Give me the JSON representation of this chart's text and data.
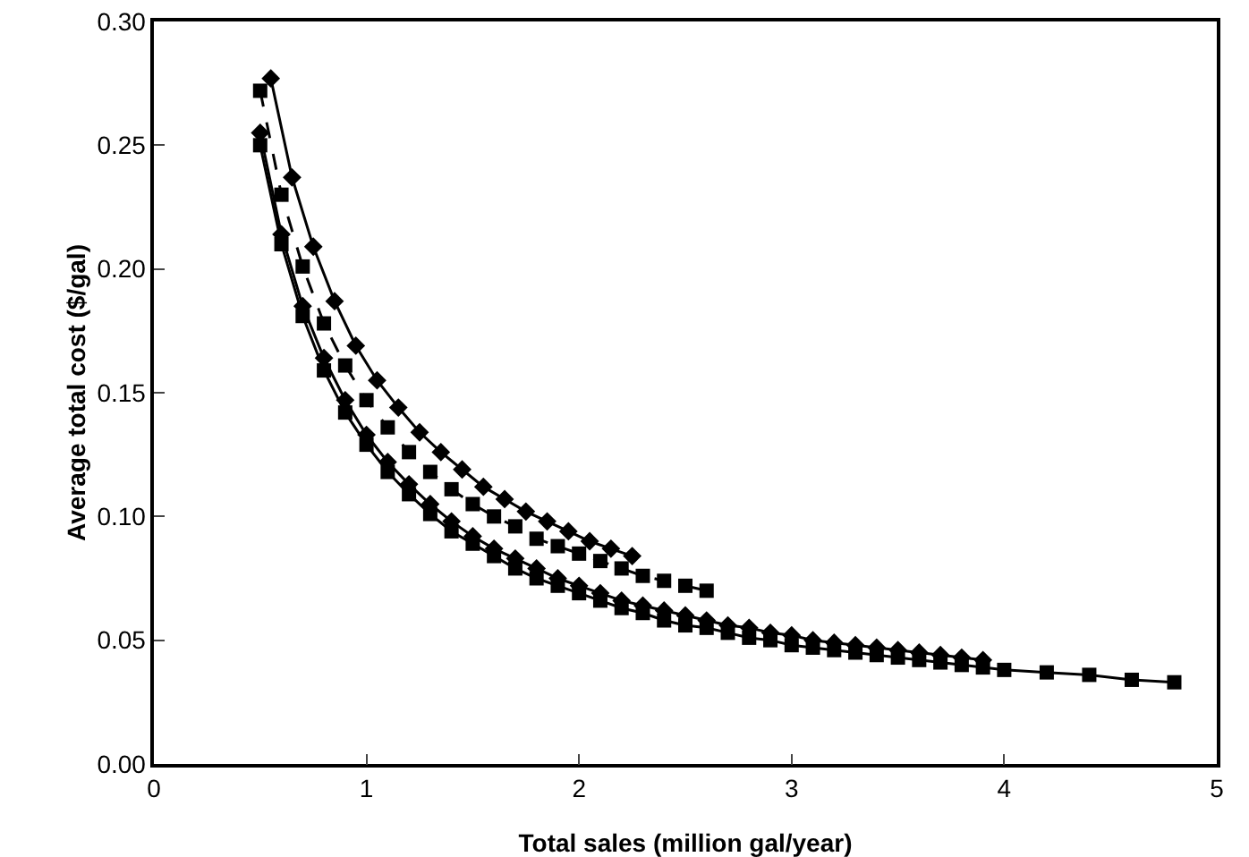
{
  "chart_data": {
    "type": "line",
    "xlabel": "Total sales (million gal/year)",
    "ylabel": "Average total cost ($/gal)",
    "xlim": [
      0,
      5
    ],
    "xticks": [
      0,
      1,
      2,
      3,
      4,
      5
    ],
    "ylim": [
      0,
      0.3
    ],
    "yticks": [
      {
        "value": 0,
        "label": "0.00"
      },
      {
        "value": 0.05,
        "label": "0.05"
      },
      {
        "value": 0.1,
        "label": "0.10"
      },
      {
        "value": 0.15,
        "label": "0.15"
      },
      {
        "value": 0.2,
        "label": "0.20"
      },
      {
        "value": 0.25,
        "label": "0.25"
      },
      {
        "value": 0.3,
        "label": "0.30"
      }
    ],
    "grid": false,
    "series": [
      {
        "color": "#000000",
        "marker": "diamond",
        "line_style": "solid",
        "x": [
          0.55,
          0.65,
          0.75,
          0.85,
          0.95,
          1.05,
          1.15,
          1.25,
          1.35,
          1.45,
          1.55,
          1.65,
          1.75,
          1.85,
          1.95,
          2.05,
          2.15,
          2.25
        ],
        "values": [
          0.277,
          0.237,
          0.209,
          0.187,
          0.169,
          0.155,
          0.144,
          0.134,
          0.126,
          0.119,
          0.112,
          0.107,
          0.102,
          0.098,
          0.094,
          0.09,
          0.087,
          0.084
        ]
      },
      {
        "color": "#000000",
        "marker": "square",
        "line_style": "dashed",
        "x": [
          0.5,
          0.6,
          0.7,
          0.8,
          0.9,
          1.0,
          1.1,
          1.2,
          1.3,
          1.4,
          1.5,
          1.6,
          1.7,
          1.8,
          1.9,
          2.0,
          2.1,
          2.2,
          2.3,
          2.4,
          2.5,
          2.6
        ],
        "values": [
          0.272,
          0.23,
          0.201,
          0.178,
          0.161,
          0.147,
          0.136,
          0.126,
          0.118,
          0.111,
          0.105,
          0.1,
          0.096,
          0.091,
          0.088,
          0.085,
          0.082,
          0.079,
          0.076,
          0.074,
          0.072,
          0.07
        ]
      },
      {
        "color": "#000000",
        "marker": "diamond",
        "line_style": "solid",
        "x": [
          0.5,
          0.6,
          0.7,
          0.8,
          0.9,
          1.0,
          1.1,
          1.2,
          1.3,
          1.4,
          1.5,
          1.6,
          1.7,
          1.8,
          1.9,
          2.0,
          2.1,
          2.2,
          2.3,
          2.4,
          2.5,
          2.6,
          2.7,
          2.8,
          2.9,
          3.0,
          3.1,
          3.2,
          3.3,
          3.4,
          3.5,
          3.6,
          3.7,
          3.8,
          3.9
        ],
        "values": [
          0.255,
          0.214,
          0.185,
          0.164,
          0.147,
          0.133,
          0.122,
          0.113,
          0.105,
          0.098,
          0.092,
          0.087,
          0.083,
          0.079,
          0.075,
          0.072,
          0.069,
          0.066,
          0.064,
          0.062,
          0.06,
          0.058,
          0.056,
          0.055,
          0.053,
          0.052,
          0.05,
          0.049,
          0.048,
          0.047,
          0.046,
          0.045,
          0.044,
          0.043,
          0.042
        ]
      },
      {
        "color": "#000000",
        "marker": "square",
        "line_style": "solid",
        "x": [
          0.5,
          0.6,
          0.7,
          0.8,
          0.9,
          1.0,
          1.1,
          1.2,
          1.3,
          1.4,
          1.5,
          1.6,
          1.7,
          1.8,
          1.9,
          2.0,
          2.1,
          2.2,
          2.3,
          2.4,
          2.5,
          2.6,
          2.7,
          2.8,
          2.9,
          3.0,
          3.1,
          3.2,
          3.3,
          3.4,
          3.5,
          3.6,
          3.7,
          3.8,
          3.9,
          4.0,
          4.2,
          4.4,
          4.6,
          4.8
        ],
        "values": [
          0.25,
          0.21,
          0.181,
          0.159,
          0.142,
          0.129,
          0.118,
          0.109,
          0.101,
          0.094,
          0.089,
          0.084,
          0.079,
          0.075,
          0.072,
          0.069,
          0.066,
          0.063,
          0.061,
          0.058,
          0.056,
          0.055,
          0.053,
          0.051,
          0.05,
          0.048,
          0.047,
          0.046,
          0.045,
          0.044,
          0.043,
          0.042,
          0.041,
          0.04,
          0.039,
          0.038,
          0.037,
          0.036,
          0.034,
          0.033
        ]
      }
    ]
  }
}
